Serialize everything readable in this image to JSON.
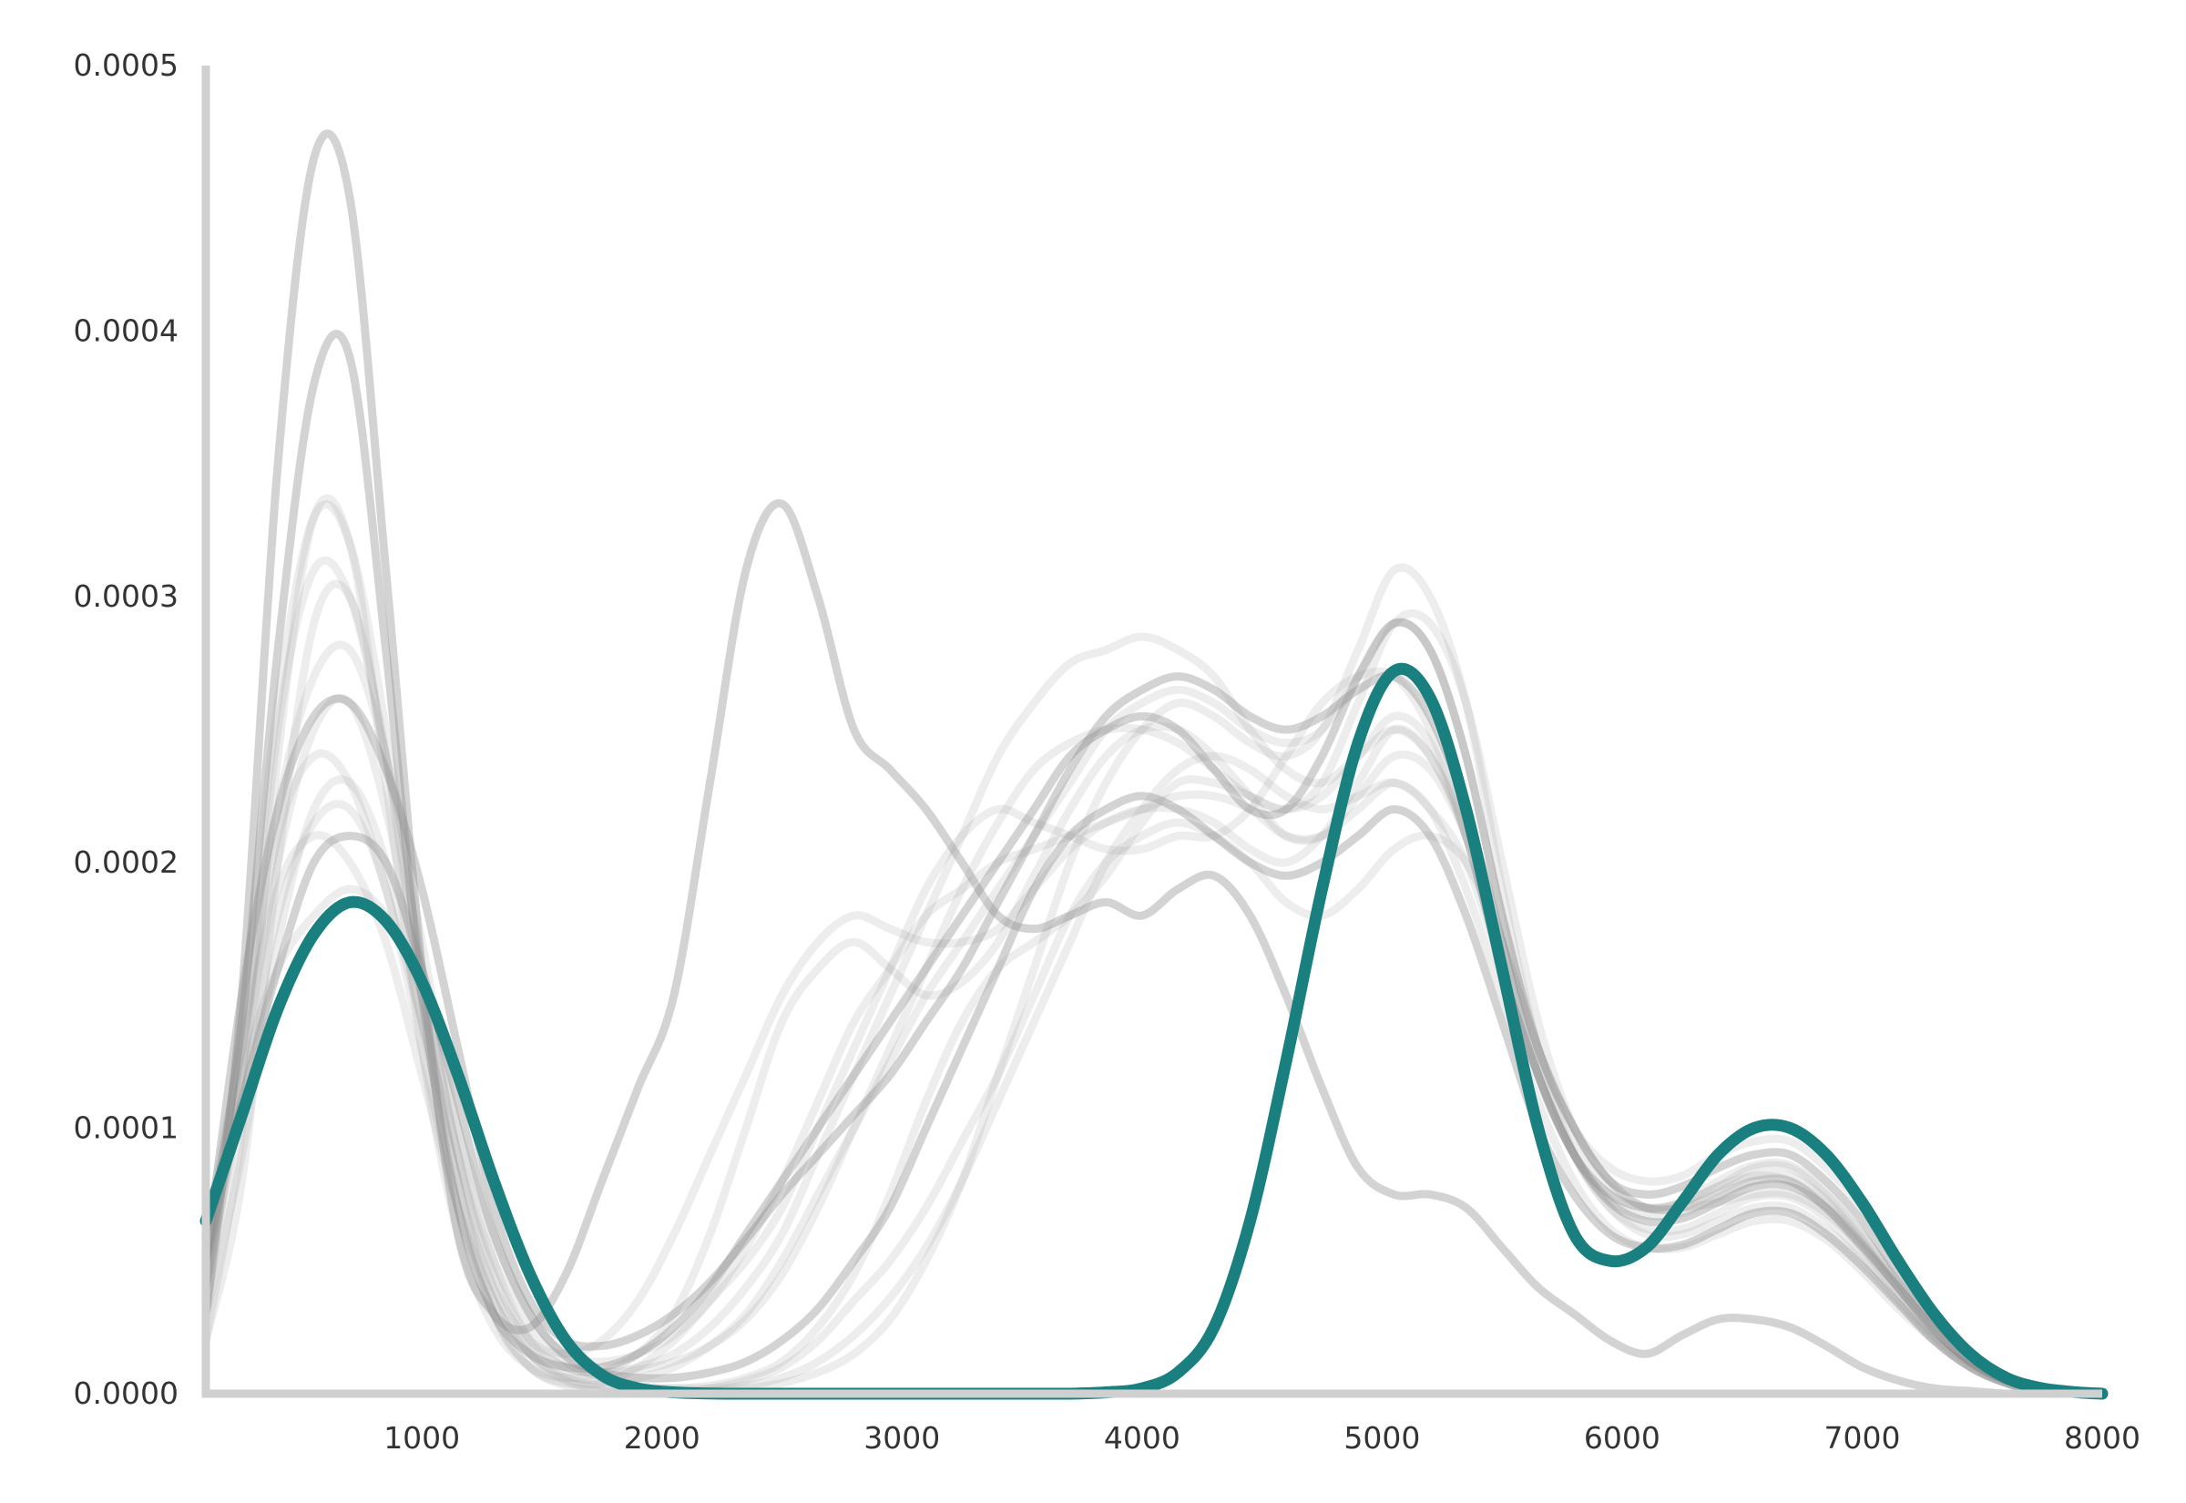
{
  "chart_data": {
    "type": "line",
    "title": "",
    "xlabel": "",
    "ylabel": "",
    "xlim": [
      100,
      8000
    ],
    "ylim": [
      0,
      0.0005
    ],
    "xticks": [
      1000,
      2000,
      3000,
      4000,
      5000,
      6000,
      7000,
      8000
    ],
    "xtick_labels": [
      "1000",
      "2000",
      "3000",
      "4000",
      "5000",
      "6000",
      "7000",
      "8000"
    ],
    "yticks": [
      0.0,
      0.0001,
      0.0002,
      0.0003,
      0.0004,
      0.0005
    ],
    "ytick_labels": [
      "0.0000",
      "0.0001",
      "0.0002",
      "0.0003",
      "0.0004",
      "0.0005"
    ],
    "grid": false,
    "legend": "none",
    "colors": {
      "highlight": "#1a7f7f",
      "background_lines": "#8c8c8c",
      "axis": "#d0d0d0"
    },
    "x": [
      100,
      250,
      400,
      550,
      700,
      850,
      1000,
      1150,
      1300,
      1450,
      1600,
      1750,
      1900,
      2050,
      2200,
      2350,
      2500,
      2650,
      2800,
      2950,
      3100,
      3250,
      3400,
      3550,
      3700,
      3850,
      4000,
      4150,
      4300,
      4450,
      4600,
      4750,
      4900,
      5050,
      5200,
      5350,
      5500,
      5650,
      5800,
      5950,
      6100,
      6250,
      6400,
      6550,
      6700,
      6850,
      7000,
      7150,
      7300,
      7450,
      7600,
      7750,
      7900,
      8000
    ],
    "highlight_series": {
      "values": [
        6.5e-05,
        0.000105,
        0.000145,
        0.000173,
        0.000185,
        0.000178,
        0.000155,
        0.00012,
        8e-05,
        4.5e-05,
        2e-05,
        7e-06,
        2e-06,
        5e-07,
        1e-07,
        0.0,
        0.0,
        0.0,
        0.0,
        0.0,
        0.0,
        0.0,
        0.0,
        0.0,
        0.0,
        5e-07,
        2e-06,
        8e-06,
        2.5e-05,
        6.5e-05,
        0.000125,
        0.00019,
        0.000245,
        0.000272,
        0.000262,
        0.00022,
        0.00016,
        0.0001,
        6e-05,
        5e-05,
        5.5e-05,
        7.2e-05,
        9e-05,
        0.0001,
        0.0001,
        9e-05,
        7.2e-05,
        5e-05,
        3e-05,
        1.5e-05,
        6e-06,
        2e-06,
        5e-07,
        0.0
      ]
    },
    "background_series": [
      {
        "values": [
          3e-05,
          0.00015,
          0.00035,
          0.000465,
          0.00045,
          0.00031,
          0.00016,
          6e-05,
          3e-05,
          2.5e-05,
          4.5e-05,
          8e-05,
          0.000115,
          0.00015,
          0.00023,
          0.00031,
          0.000335,
          0.0003,
          0.00025,
          0.000235,
          0.00022,
          0.0002,
          0.00018,
          0.000175,
          0.00018,
          0.000185,
          0.00018,
          0.00019,
          0.000195,
          0.00018,
          0.00015,
          0.000115,
          8.5e-05,
          7.5e-05,
          7.5e-05,
          7e-05,
          5.5e-05,
          4e-05,
          3e-05,
          2e-05,
          1.5e-05,
          2.2e-05,
          2.8e-05,
          2.8e-05,
          2.5e-05,
          1.8e-05,
          1e-05,
          5e-06,
          2e-06,
          1e-06,
          0.0,
          0.0,
          0.0,
          0.0
        ]
      },
      {
        "values": [
          3e-05,
          0.00012,
          0.0002,
          0.00025,
          0.00026,
          0.00022,
          0.00015,
          8e-05,
          3e-05,
          1e-05,
          4e-06,
          4e-06,
          1e-05,
          2e-05,
          3.5e-05,
          5e-05,
          7e-05,
          0.0001,
          0.00013,
          0.00016,
          0.00019,
          0.00021,
          0.00022,
          0.000215,
          0.00021,
          0.000205,
          0.000205,
          0.00021,
          0.00021,
          0.00022,
          0.00024,
          0.00026,
          0.00027,
          0.00027,
          0.00025,
          0.00021,
          0.00016,
          0.00012,
          9e-05,
          7e-05,
          6e-05,
          6e-05,
          6.5e-05,
          7e-05,
          7e-05,
          6.2e-05,
          5e-05,
          3.5e-05,
          2e-05,
          1e-05,
          4e-06,
          1e-06,
          0.0,
          0.0
        ]
      },
      {
        "values": [
          4e-05,
          0.00011,
          0.00018,
          0.000215,
          0.00022,
          0.00019,
          0.00013,
          7e-05,
          3e-05,
          1e-05,
          3e-06,
          1e-06,
          0.0,
          0.0,
          2e-06,
          5e-06,
          1e-05,
          2e-05,
          3.5e-05,
          5e-05,
          7e-05,
          9.5e-05,
          0.00012,
          0.00015,
          0.00018,
          0.0002,
          0.00021,
          0.000215,
          0.00021,
          0.0002,
          0.000185,
          0.00018,
          0.00019,
          0.000205,
          0.00021,
          0.0002,
          0.00017,
          0.00013,
          0.0001,
          8e-05,
          7e-05,
          7e-05,
          7.2e-05,
          7.5e-05,
          7.5e-05,
          6.8e-05,
          5.5e-05,
          4e-05,
          2.5e-05,
          1.2e-05,
          5e-06,
          2e-06,
          0.0,
          0.0
        ]
      },
      {
        "values": [
          3e-05,
          0.00013,
          0.00022,
          0.00027,
          0.00028,
          0.00024,
          0.00017,
          0.0001,
          5e-05,
          2e-05,
          1e-05,
          8e-06,
          1e-05,
          1.5e-05,
          2.5e-05,
          4e-05,
          6e-05,
          9e-05,
          0.00012,
          0.00015,
          0.00018,
          0.00021,
          0.00024,
          0.00026,
          0.000275,
          0.00028,
          0.000285,
          0.00028,
          0.00027,
          0.00025,
          0.000235,
          0.00023,
          0.00024,
          0.00025,
          0.00024,
          0.00021,
          0.00016,
          0.00012,
          9e-05,
          7.5e-05,
          7e-05,
          7.2e-05,
          7.8e-05,
          8.5e-05,
          8.5e-05,
          7.5e-05,
          6e-05,
          4.2e-05,
          2.5e-05,
          1.2e-05,
          5e-06,
          2e-06,
          0.0,
          0.0
        ]
      },
      {
        "values": [
          5e-05,
          0.00014,
          0.00028,
          0.00038,
          0.00039,
          0.00028,
          0.00015,
          7e-05,
          3e-05,
          1.5e-05,
          1e-05,
          1e-05,
          1.5e-05,
          2.5e-05,
          4e-05,
          6e-05,
          8e-05,
          0.0001,
          0.00012,
          0.00014,
          0.00016,
          0.00018,
          0.0002,
          0.00022,
          0.00024,
          0.00025,
          0.000255,
          0.00025,
          0.000235,
          0.00022,
          0.00022,
          0.00024,
          0.00027,
          0.00029,
          0.00028,
          0.00024,
          0.00018,
          0.00013,
          0.0001,
          8e-05,
          7.5e-05,
          7.8e-05,
          8.5e-05,
          9e-05,
          9e-05,
          8e-05,
          6.5e-05,
          4.5e-05,
          2.8e-05,
          1.4e-05,
          6e-06,
          2e-06,
          0.0,
          0.0
        ]
      },
      {
        "values": [
          6e-05,
          0.00012,
          0.00016,
          0.00018,
          0.00019,
          0.00018,
          0.00015,
          0.0001,
          6e-05,
          3e-05,
          1.5e-05,
          1.2e-05,
          1.5e-05,
          2.2e-05,
          3.5e-05,
          5.5e-05,
          8e-05,
          0.00011,
          0.00014,
          0.00016,
          0.00018,
          0.00019,
          0.0002,
          0.000205,
          0.00021,
          0.000215,
          0.00022,
          0.000225,
          0.000225,
          0.00022,
          0.00021,
          0.00021,
          0.00022,
          0.00023,
          0.00022,
          0.0002,
          0.00016,
          0.00012,
          9e-05,
          7.5e-05,
          7e-05,
          7e-05,
          7.5e-05,
          8e-05,
          8e-05,
          7e-05,
          5.5e-05,
          4e-05,
          2.4e-05,
          1.2e-05,
          5e-06,
          2e-06,
          0.0,
          0.0
        ]
      },
      {
        "values": [
          2e-05,
          0.0001,
          0.00024,
          0.00033,
          0.00032,
          0.00023,
          0.00013,
          6e-05,
          2.5e-05,
          1e-05,
          6e-06,
          8e-06,
          1.5e-05,
          3e-05,
          6e-05,
          0.0001,
          0.00014,
          0.00016,
          0.00017,
          0.00016,
          0.00015,
          0.000155,
          0.00017,
          0.000195,
          0.00022,
          0.00024,
          0.00025,
          0.00025,
          0.00024,
          0.000225,
          0.00021,
          0.00021,
          0.000225,
          0.00024,
          0.000235,
          0.00021,
          0.00017,
          0.00013,
          0.0001,
          8.5e-05,
          8e-05,
          8.2e-05,
          9e-05,
          9.5e-05,
          9.5e-05,
          8.5e-05,
          7e-05,
          5e-05,
          3e-05,
          1.5e-05,
          6e-06,
          2e-06,
          0.0,
          0.0
        ]
      },
      {
        "values": [
          4e-05,
          0.00013,
          0.00021,
          0.00024,
          0.00023,
          0.00019,
          0.00014,
          9e-05,
          5e-05,
          2.5e-05,
          1.2e-05,
          6e-06,
          3e-06,
          2e-06,
          2e-06,
          3e-06,
          6e-06,
          1.2e-05,
          2.2e-05,
          3.6e-05,
          5.5e-05,
          8e-05,
          0.00011,
          0.00014,
          0.00017,
          0.0002,
          0.00022,
          0.000235,
          0.00024,
          0.000235,
          0.000225,
          0.00022,
          0.000225,
          0.00023,
          0.00022,
          0.00019,
          0.00015,
          0.00011,
          8e-05,
          6.2e-05,
          5.5e-05,
          5.5e-05,
          6e-05,
          6.5e-05,
          6.5e-05,
          5.8e-05,
          4.6e-05,
          3.2e-05,
          2e-05,
          1e-05,
          4e-06,
          1e-06,
          0.0,
          0.0
        ]
      },
      {
        "values": [
          5e-05,
          0.00015,
          0.00022,
          0.000255,
          0.00026,
          0.000235,
          0.00019,
          0.00013,
          7e-05,
          3.5e-05,
          2e-05,
          1.8e-05,
          2.2e-05,
          3e-05,
          4.2e-05,
          5.8e-05,
          7.5e-05,
          9e-05,
          0.000105,
          0.00012,
          0.00014,
          0.00016,
          0.000185,
          0.00021,
          0.000235,
          0.000255,
          0.000265,
          0.00027,
          0.000265,
          0.000255,
          0.00025,
          0.000255,
          0.000265,
          0.00027,
          0.000255,
          0.00022,
          0.00017,
          0.00012,
          9e-05,
          7.2e-05,
          6.5e-05,
          6.6e-05,
          7.2e-05,
          7.8e-05,
          7.8e-05,
          7e-05,
          5.6e-05,
          4e-05,
          2.4e-05,
          1.2e-05,
          5e-06,
          2e-06,
          0.0,
          0.0
        ]
      },
      {
        "values": [
          3e-05,
          9e-05,
          0.00017,
          0.00022,
          0.00023,
          0.0002,
          0.00014,
          8e-05,
          4e-05,
          2e-05,
          1.5e-05,
          2e-05,
          3.5e-05,
          6e-05,
          9e-05,
          0.00012,
          0.00015,
          0.00017,
          0.00018,
          0.000175,
          0.00017,
          0.00017,
          0.000175,
          0.00019,
          0.000205,
          0.000215,
          0.00022,
          0.00022,
          0.000215,
          0.000205,
          0.0002,
          0.00021,
          0.00023,
          0.00025,
          0.00024,
          0.00021,
          0.00016,
          0.00012,
          9e-05,
          7.5e-05,
          7e-05,
          7.2e-05,
          8e-05,
          8.6e-05,
          8.6e-05,
          7.6e-05,
          6e-05,
          4.2e-05,
          2.6e-05,
          1.3e-05,
          5e-06,
          2e-06,
          0.0,
          0.0
        ]
      },
      {
        "values": [
          6e-05,
          0.00013,
          0.00019,
          0.00021,
          0.0002,
          0.00017,
          0.00012,
          7e-05,
          3.5e-05,
          1.5e-05,
          6e-06,
          3e-06,
          2e-06,
          2e-06,
          3e-06,
          6e-06,
          1.2e-05,
          2.5e-05,
          4.5e-05,
          7.5e-05,
          0.00011,
          0.00014,
          0.00016,
          0.00017,
          0.00018,
          0.000195,
          0.000215,
          0.00023,
          0.00023,
          0.000225,
          0.00022,
          0.00023,
          0.00026,
          0.00029,
          0.00029,
          0.00026,
          0.0002,
          0.00014,
          0.0001,
          8e-05,
          7e-05,
          7.2e-05,
          7.8e-05,
          8.2e-05,
          8e-05,
          7e-05,
          5.5e-05,
          3.8e-05,
          2.2e-05,
          1.1e-05,
          4e-06,
          1e-06,
          0.0,
          0.0
        ]
      },
      {
        "values": [
          4e-05,
          0.00012,
          0.00025,
          0.00031,
          0.0003,
          0.00024,
          0.00016,
          9e-05,
          4e-05,
          1.5e-05,
          5e-06,
          2e-06,
          1e-06,
          0.0,
          1e-06,
          2e-06,
          4e-06,
          8e-06,
          1.5e-05,
          2.8e-05,
          5e-05,
          8e-05,
          0.00012,
          0.00016,
          0.0002,
          0.00023,
          0.00025,
          0.00026,
          0.000255,
          0.000245,
          0.00024,
          0.00025,
          0.00028,
          0.00031,
          0.0003,
          0.00026,
          0.00019,
          0.00013,
          9e-05,
          7e-05,
          6.2e-05,
          6.2e-05,
          6.8e-05,
          7.4e-05,
          7.4e-05,
          6.6e-05,
          5.2e-05,
          3.6e-05,
          2.1e-05,
          1e-05,
          4e-06,
          1e-06,
          0.0,
          0.0
        ]
      },
      {
        "values": [
          5e-05,
          0.00011,
          0.00016,
          0.0002,
          0.00021,
          0.0002,
          0.00016,
          0.00011,
          6e-05,
          3e-05,
          1.4e-05,
          8e-06,
          6e-06,
          6e-06,
          8e-06,
          1.2e-05,
          2e-05,
          3.2e-05,
          5e-05,
          7e-05,
          0.0001,
          0.00013,
          0.00016,
          0.00019,
          0.00021,
          0.00022,
          0.000225,
          0.00022,
          0.00021,
          0.0002,
          0.000195,
          0.0002,
          0.00021,
          0.00022,
          0.00021,
          0.00018,
          0.00014,
          0.0001,
          7.5e-05,
          6e-05,
          5.5e-05,
          5.6e-05,
          6.2e-05,
          6.8e-05,
          6.8e-05,
          6e-05,
          4.8e-05,
          3.4e-05,
          2e-05,
          1e-05,
          4e-06,
          1e-06,
          0.0,
          0.0
        ]
      },
      {
        "values": [
          2e-05,
          8e-05,
          0.0002,
          0.00029,
          0.0003,
          0.00024,
          0.00015,
          8e-05,
          3.5e-05,
          1.5e-05,
          7e-06,
          5e-06,
          6e-06,
          1e-05,
          1.8e-05,
          3e-05,
          5e-05,
          7.5e-05,
          0.0001,
          0.000125,
          0.00015,
          0.00017,
          0.00019,
          0.00021,
          0.00023,
          0.00025,
          0.00026,
          0.000265,
          0.00026,
          0.00025,
          0.000245,
          0.00025,
          0.00027,
          0.00029,
          0.00028,
          0.00024,
          0.00018,
          0.00013,
          9.5e-05,
          7.8e-05,
          7e-05,
          7e-05,
          7.6e-05,
          8.2e-05,
          8.2e-05,
          7.3e-05,
          5.8e-05,
          4e-05,
          2.4e-05,
          1.2e-05,
          5e-06,
          2e-06,
          0.0,
          0.0
        ]
      },
      {
        "values": [
          4e-05,
          0.00014,
          0.00026,
          0.00033,
          0.00032,
          0.00025,
          0.00016,
          9e-05,
          4.5e-05,
          2e-05,
          1e-05,
          8e-06,
          9e-06,
          1.2e-05,
          1.8e-05,
          2.8e-05,
          4.5e-05,
          7e-05,
          0.0001,
          0.00013,
          0.00016,
          0.00019,
          0.000215,
          0.000235,
          0.000245,
          0.00025,
          0.00025,
          0.000245,
          0.000235,
          0.000225,
          0.00022,
          0.000225,
          0.00024,
          0.000255,
          0.000245,
          0.00021,
          0.00016,
          0.00012,
          9e-05,
          7.3e-05,
          6.7e-05,
          6.8e-05,
          7.4e-05,
          8e-05,
          8e-05,
          7.1e-05,
          5.7e-05,
          4e-05,
          2.4e-05,
          1.2e-05,
          5e-06,
          2e-06,
          0.0,
          0.0
        ]
      }
    ]
  }
}
